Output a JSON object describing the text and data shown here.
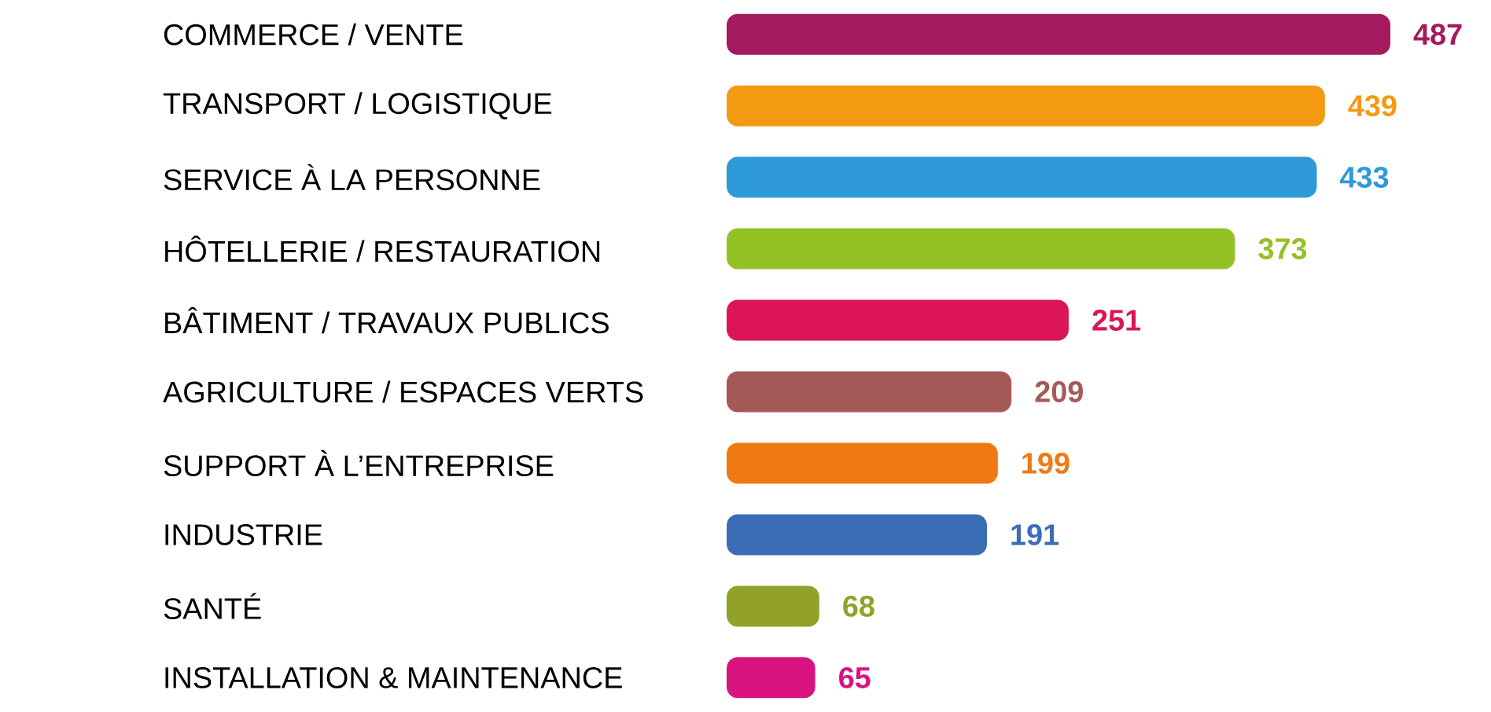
{
  "chart_data": {
    "type": "bar",
    "orientation": "horizontal",
    "data_labels": true,
    "categories": [
      "COMMERCE / VENTE",
      "TRANSPORT / LOGISTIQUE",
      "SERVICE À LA PERSONNE",
      "HÔTELLERIE / RESTAURATION",
      "BÂTIMENT / TRAVAUX PUBLICS",
      "AGRICULTURE / ESPACES VERTS",
      "SUPPORT À L’ENTREPRISE",
      "INDUSTRIE",
      "SANTÉ",
      "INSTALLATION & MAINTENANCE"
    ],
    "values": [
      487,
      439,
      433,
      373,
      251,
      209,
      199,
      191,
      68,
      65
    ],
    "colors": [
      "#a51a5e",
      "#f39a12",
      "#2e9ad8",
      "#93c225",
      "#dc1558",
      "#a65a58",
      "#f07a12",
      "#3a6db5",
      "#93a12a",
      "#d9137f"
    ]
  }
}
